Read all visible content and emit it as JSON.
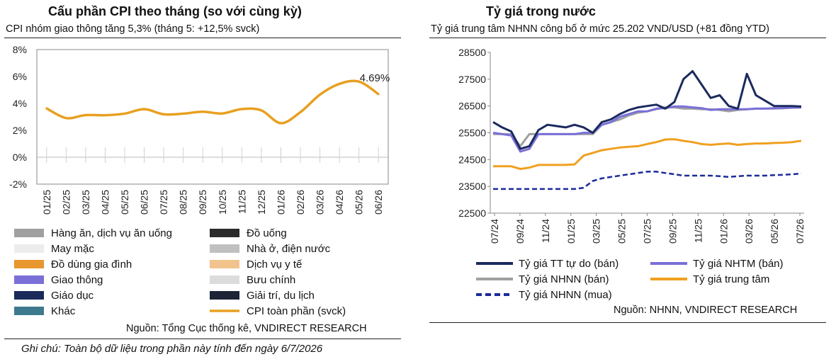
{
  "left_panel": {
    "title": "Cấu phần CPI theo tháng (so với cùng kỳ)",
    "subtitle": "CPI nhóm giao thông tăng 5,3% (tháng 5: +12,5% svck)",
    "source": "Nguồn: Tổng Cục thống kê, VNDIRECT RESEARCH",
    "note": "Ghi chú: Toàn bộ dữ liệu trong phần này tính đến ngày 6/7/2026"
  },
  "right_panel": {
    "title": "Tỷ giá trong nước",
    "subtitle": "Tỷ giá trung tâm NHNN công bố ở mức 25.202 VND/USD (+81 đồng YTD)",
    "source": "Nguồn: NHNN, VNDIRECT RESEARCH"
  },
  "chart_data": [
    {
      "type": "line",
      "title": "Cấu phần CPI theo tháng (so với cùng kỳ)",
      "categories": [
        "01/25",
        "02/25",
        "03/25",
        "04/25",
        "05/25",
        "06/25",
        "07/25",
        "08/25",
        "09/25",
        "10/25",
        "11/25",
        "12/25",
        "01/26",
        "02/26",
        "03/26",
        "04/26",
        "05/26",
        "06/26"
      ],
      "y_tick_labels": [
        "8%",
        "6%",
        "4%",
        "2%",
        "0%",
        "-2%"
      ],
      "ylim": [
        -2,
        8
      ],
      "series": [
        {
          "name": "CPI toàn phần (svck)",
          "color": "#e8a020",
          "values": [
            3.63,
            2.91,
            3.13,
            3.12,
            3.24,
            3.57,
            3.19,
            3.24,
            3.38,
            3.25,
            3.58,
            3.48,
            2.53,
            3.35,
            4.65,
            5.45,
            5.62,
            4.69
          ]
        }
      ],
      "data_labels": [
        {
          "category": "06/26",
          "text": "4.69%"
        }
      ],
      "legend": [
        {
          "label": "Hàng ăn, dịch vụ ăn uống",
          "color": "#a0a0a0",
          "kind": "bar"
        },
        {
          "label": "Đồ uống",
          "color": "#2b2b2b",
          "kind": "bar"
        },
        {
          "label": "May mặc",
          "color": "#ececec",
          "kind": "bar"
        },
        {
          "label": "Nhà ở, điện nước",
          "color": "#c0c0c0",
          "kind": "bar"
        },
        {
          "label": "Đồ dùng gia đình",
          "color": "#e8962e",
          "kind": "bar"
        },
        {
          "label": "Dịch vụ y tế",
          "color": "#f2c38c",
          "kind": "bar"
        },
        {
          "label": "Giao thông",
          "color": "#7a70d8",
          "kind": "bar"
        },
        {
          "label": "Bưu chính",
          "color": "#dcdcdc",
          "kind": "bar"
        },
        {
          "label": "Giáo dục",
          "color": "#1a2a5a",
          "kind": "bar"
        },
        {
          "label": "Giải trí, du lịch",
          "color": "#1c2436",
          "kind": "bar"
        },
        {
          "label": "Khác",
          "color": "#3e7a8e",
          "kind": "bar"
        },
        {
          "label": "CPI toàn phần (svck)",
          "color": "#e8a020",
          "kind": "line"
        }
      ]
    },
    {
      "type": "line",
      "title": "Tỷ giá trong nước",
      "x_tick_labels": [
        "07/24",
        "09/24",
        "11/24",
        "01/25",
        "03/25",
        "05/25",
        "07/25",
        "09/25",
        "11/25",
        "01/26",
        "03/26",
        "05/26",
        "07/26"
      ],
      "y_tick_labels": [
        "28500",
        "27500",
        "26500",
        "25500",
        "24500",
        "23500",
        "22500"
      ],
      "ylim": [
        22500,
        28500
      ],
      "series": [
        {
          "name": "Tỷ giá TT tự do (bán)",
          "color": "#1b2a5e",
          "style": "solid",
          "values": [
            25900,
            25700,
            25550,
            24900,
            25000,
            25600,
            25800,
            25750,
            25700,
            25800,
            25700,
            25500,
            25900,
            26000,
            26200,
            26350,
            26450,
            26500,
            26550,
            26400,
            26650,
            27500,
            27800,
            27300,
            26800,
            26900,
            26500,
            26400,
            27700,
            26900,
            26700,
            26500,
            26500,
            26500,
            26480
          ]
        },
        {
          "name": "Tỷ giá NHTM (bán)",
          "color": "#7a70d8",
          "style": "solid",
          "values": [
            25500,
            25450,
            25400,
            24800,
            24900,
            25450,
            25450,
            25450,
            25450,
            25450,
            25500,
            25500,
            25800,
            25900,
            26100,
            26200,
            26300,
            26300,
            26400,
            26420,
            26480,
            26480,
            26450,
            26420,
            26350,
            26380,
            26380,
            26380,
            26380,
            26400,
            26400,
            26420,
            26420,
            26450,
            26450
          ]
        },
        {
          "name": "Tỷ giá NHNN (bán)",
          "color": "#a0a0a0",
          "style": "solid",
          "values": [
            25450,
            25450,
            25450,
            25000,
            25450,
            25450,
            25450,
            25450,
            25450,
            25450,
            25450,
            25450,
            25800,
            25900,
            26000,
            26150,
            26250,
            26300,
            26380,
            26450,
            26450,
            26400,
            26400,
            26380,
            26380,
            26350,
            26300,
            26350,
            26380,
            26400,
            26400,
            26400,
            26420,
            26430,
            26440
          ]
        },
        {
          "name": "Tỷ giá trung tâm",
          "color": "#f0a020",
          "style": "solid",
          "values": [
            24250,
            24250,
            24250,
            24150,
            24200,
            24300,
            24300,
            24300,
            24300,
            24320,
            24650,
            24750,
            24850,
            24900,
            24950,
            24980,
            25000,
            25080,
            25150,
            25250,
            25260,
            25200,
            25150,
            25080,
            25050,
            25080,
            25100,
            25050,
            25080,
            25100,
            25100,
            25120,
            25130,
            25150,
            25202
          ]
        },
        {
          "name": "Tỷ giá NHNN (mua)",
          "color": "#1b2a9a",
          "style": "dashed",
          "values": [
            23400,
            23400,
            23400,
            23400,
            23400,
            23400,
            23400,
            23400,
            23400,
            23400,
            23450,
            23700,
            23800,
            23850,
            23900,
            23950,
            24000,
            24050,
            24050,
            24000,
            23950,
            23900,
            23900,
            23900,
            23900,
            23880,
            23850,
            23880,
            23900,
            23900,
            23900,
            23920,
            23930,
            23950,
            23980
          ]
        }
      ],
      "legend_placement": "bottom"
    }
  ]
}
